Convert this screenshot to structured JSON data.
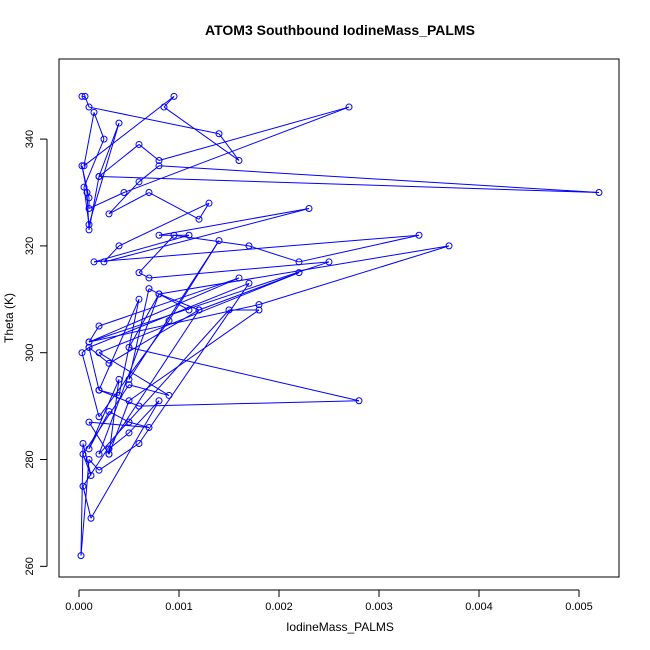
{
  "chart_data": {
    "type": "scatter",
    "title": "ATOM3 Southbound IodineMass_PALMS",
    "xlabel": "IodineMass_PALMS",
    "ylabel": "Theta (K)",
    "xlim": [
      -0.0002,
      0.0054
    ],
    "ylim": [
      258,
      355
    ],
    "xticks": [
      0.0,
      0.001,
      0.002,
      0.003,
      0.004,
      0.005
    ],
    "xtick_labels": [
      "0.000",
      "0.001",
      "0.002",
      "0.003",
      "0.004",
      "0.005"
    ],
    "yticks": [
      260,
      280,
      300,
      320,
      340
    ],
    "ytick_labels": [
      "260",
      "280",
      "300",
      "320",
      "340"
    ],
    "grid": false,
    "legend": "none",
    "color": "#0000ff",
    "markers": "open-circle",
    "connected": true,
    "series": [
      {
        "x": [
          3e-05,
          6e-05,
          0.0001,
          0.0014,
          0.0016,
          0.00085,
          0.00095,
          5e-05,
          0.00015,
          0.00025,
          5e-05,
          0.0001,
          0.0004,
          0.0002,
          0.0006,
          0.0008,
          0.0027,
          0.00045,
          0.0001,
          0.0001,
          3e-05,
          8e-05,
          0.0001,
          0.0002,
          0.0052,
          0.0008,
          0.0006,
          0.0003,
          0.0007,
          0.0012,
          0.0013,
          0.0004,
          0.00025,
          0.0023,
          0.0008,
          0.0011,
          0.00015,
          0.0034,
          0.0022,
          0.0017,
          0.00095,
          0.0006,
          0.0007,
          0.0025,
          0.0001,
          0.0016,
          0.0002,
          0.0001,
          0.0018,
          0.0037,
          0.0008,
          0.0012,
          0.0003,
          0.0001,
          0.0002,
          0.0006,
          0.0004,
          0.0002,
          0.0006,
          0.0028,
          0.0005,
          0.0008,
          0.0002,
          0.0015,
          0.0018,
          0.0005,
          0.0003,
          0.0001,
          0.0007,
          0.0005,
          0.0003,
          0.0001,
          0.0004,
          0.0003,
          0.0003,
          0.0005,
          0.0008,
          0.00012,
          4e-05,
          0.0012,
          0.0022,
          0.0002,
          0.0009,
          0.0005,
          4e-05,
          0.00012,
          4e-05,
          2e-05,
          0.0001,
          0.0002,
          0.0006,
          0.0017,
          0.0001,
          3e-05,
          0.0002,
          0.0009,
          0.0014,
          0.0005,
          0.0007,
          0.0011
        ],
        "y": [
          348,
          348,
          346,
          341,
          336,
          346,
          348,
          335,
          345,
          340,
          331,
          324,
          343,
          333,
          339,
          336,
          346,
          330,
          327,
          329,
          335,
          330,
          323,
          333,
          330,
          335,
          332,
          326,
          330,
          325,
          328,
          320,
          317,
          327,
          322,
          322,
          317,
          322,
          317,
          320,
          322,
          315,
          314,
          317,
          302,
          314,
          305,
          302,
          309,
          320,
          311,
          308,
          298,
          301,
          293,
          310,
          292,
          293,
          290,
          291,
          301,
          311,
          281,
          308,
          308,
          291,
          281,
          287,
          286,
          287,
          289,
          282,
          295,
          281,
          282,
          285,
          291,
          269,
          275,
          308,
          315,
          300,
          292,
          294,
          281,
          277,
          283,
          262,
          280,
          278,
          283,
          313,
          301,
          300,
          288,
          306,
          321,
          295,
          312,
          308
        ]
      }
    ]
  }
}
